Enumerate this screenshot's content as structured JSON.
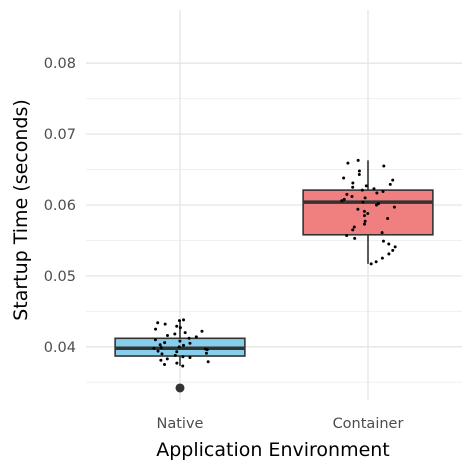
{
  "chart_data": {
    "type": "boxplot",
    "xlabel": "Application Environment",
    "ylabel": "Startup Time (seconds)",
    "categories": [
      "Native",
      "Container"
    ],
    "ylim": [
      0.0325,
      0.0875
    ],
    "yticks": [
      0.04,
      0.05,
      0.06,
      0.07,
      0.08
    ],
    "ytick_labels": [
      "0.04",
      "0.05",
      "0.06",
      "0.07",
      "0.08"
    ],
    "grid": true,
    "legend": "none",
    "boxes": [
      {
        "category": "Native",
        "color": "#87CEEB",
        "min": 0.0373,
        "q1": 0.0387,
        "median": 0.0398,
        "q3": 0.0412,
        "max": 0.0438,
        "outliers": [
          0.0342
        ]
      },
      {
        "category": "Container",
        "color": "#F08080",
        "min": 0.0517,
        "q1": 0.0558,
        "median": 0.0604,
        "q3": 0.0621,
        "max": 0.0663,
        "outliers": []
      }
    ],
    "points": [
      {
        "category": "Native",
        "values": [
          0.0437,
          0.0438,
          0.0434,
          0.0432,
          0.0429,
          0.0427,
          0.0425,
          0.0422,
          0.042,
          0.0418,
          0.0416,
          0.0414,
          0.0412,
          0.041,
          0.0408,
          0.0406,
          0.0405,
          0.0403,
          0.0402,
          0.04,
          0.0399,
          0.0398,
          0.0397,
          0.0396,
          0.0394,
          0.0393,
          0.0391,
          0.039,
          0.0388,
          0.0386,
          0.0385,
          0.0383,
          0.0381,
          0.0379,
          0.0377,
          0.0375,
          0.0373
        ]
      },
      {
        "category": "Container",
        "values": [
          0.0663,
          0.0659,
          0.0655,
          0.0648,
          0.0643,
          0.0638,
          0.0635,
          0.0631,
          0.0629,
          0.0627,
          0.0625,
          0.0623,
          0.0621,
          0.0619,
          0.0617,
          0.0615,
          0.0612,
          0.061,
          0.0608,
          0.0606,
          0.0604,
          0.0602,
          0.06,
          0.0597,
          0.0594,
          0.0591,
          0.0588,
          0.0585,
          0.0581,
          0.0577,
          0.0573,
          0.0569,
          0.0565,
          0.0561,
          0.0557,
          0.0553,
          0.0549,
          0.0545,
          0.0541,
          0.0536,
          0.0531,
          0.0525,
          0.052,
          0.0517
        ]
      }
    ]
  }
}
